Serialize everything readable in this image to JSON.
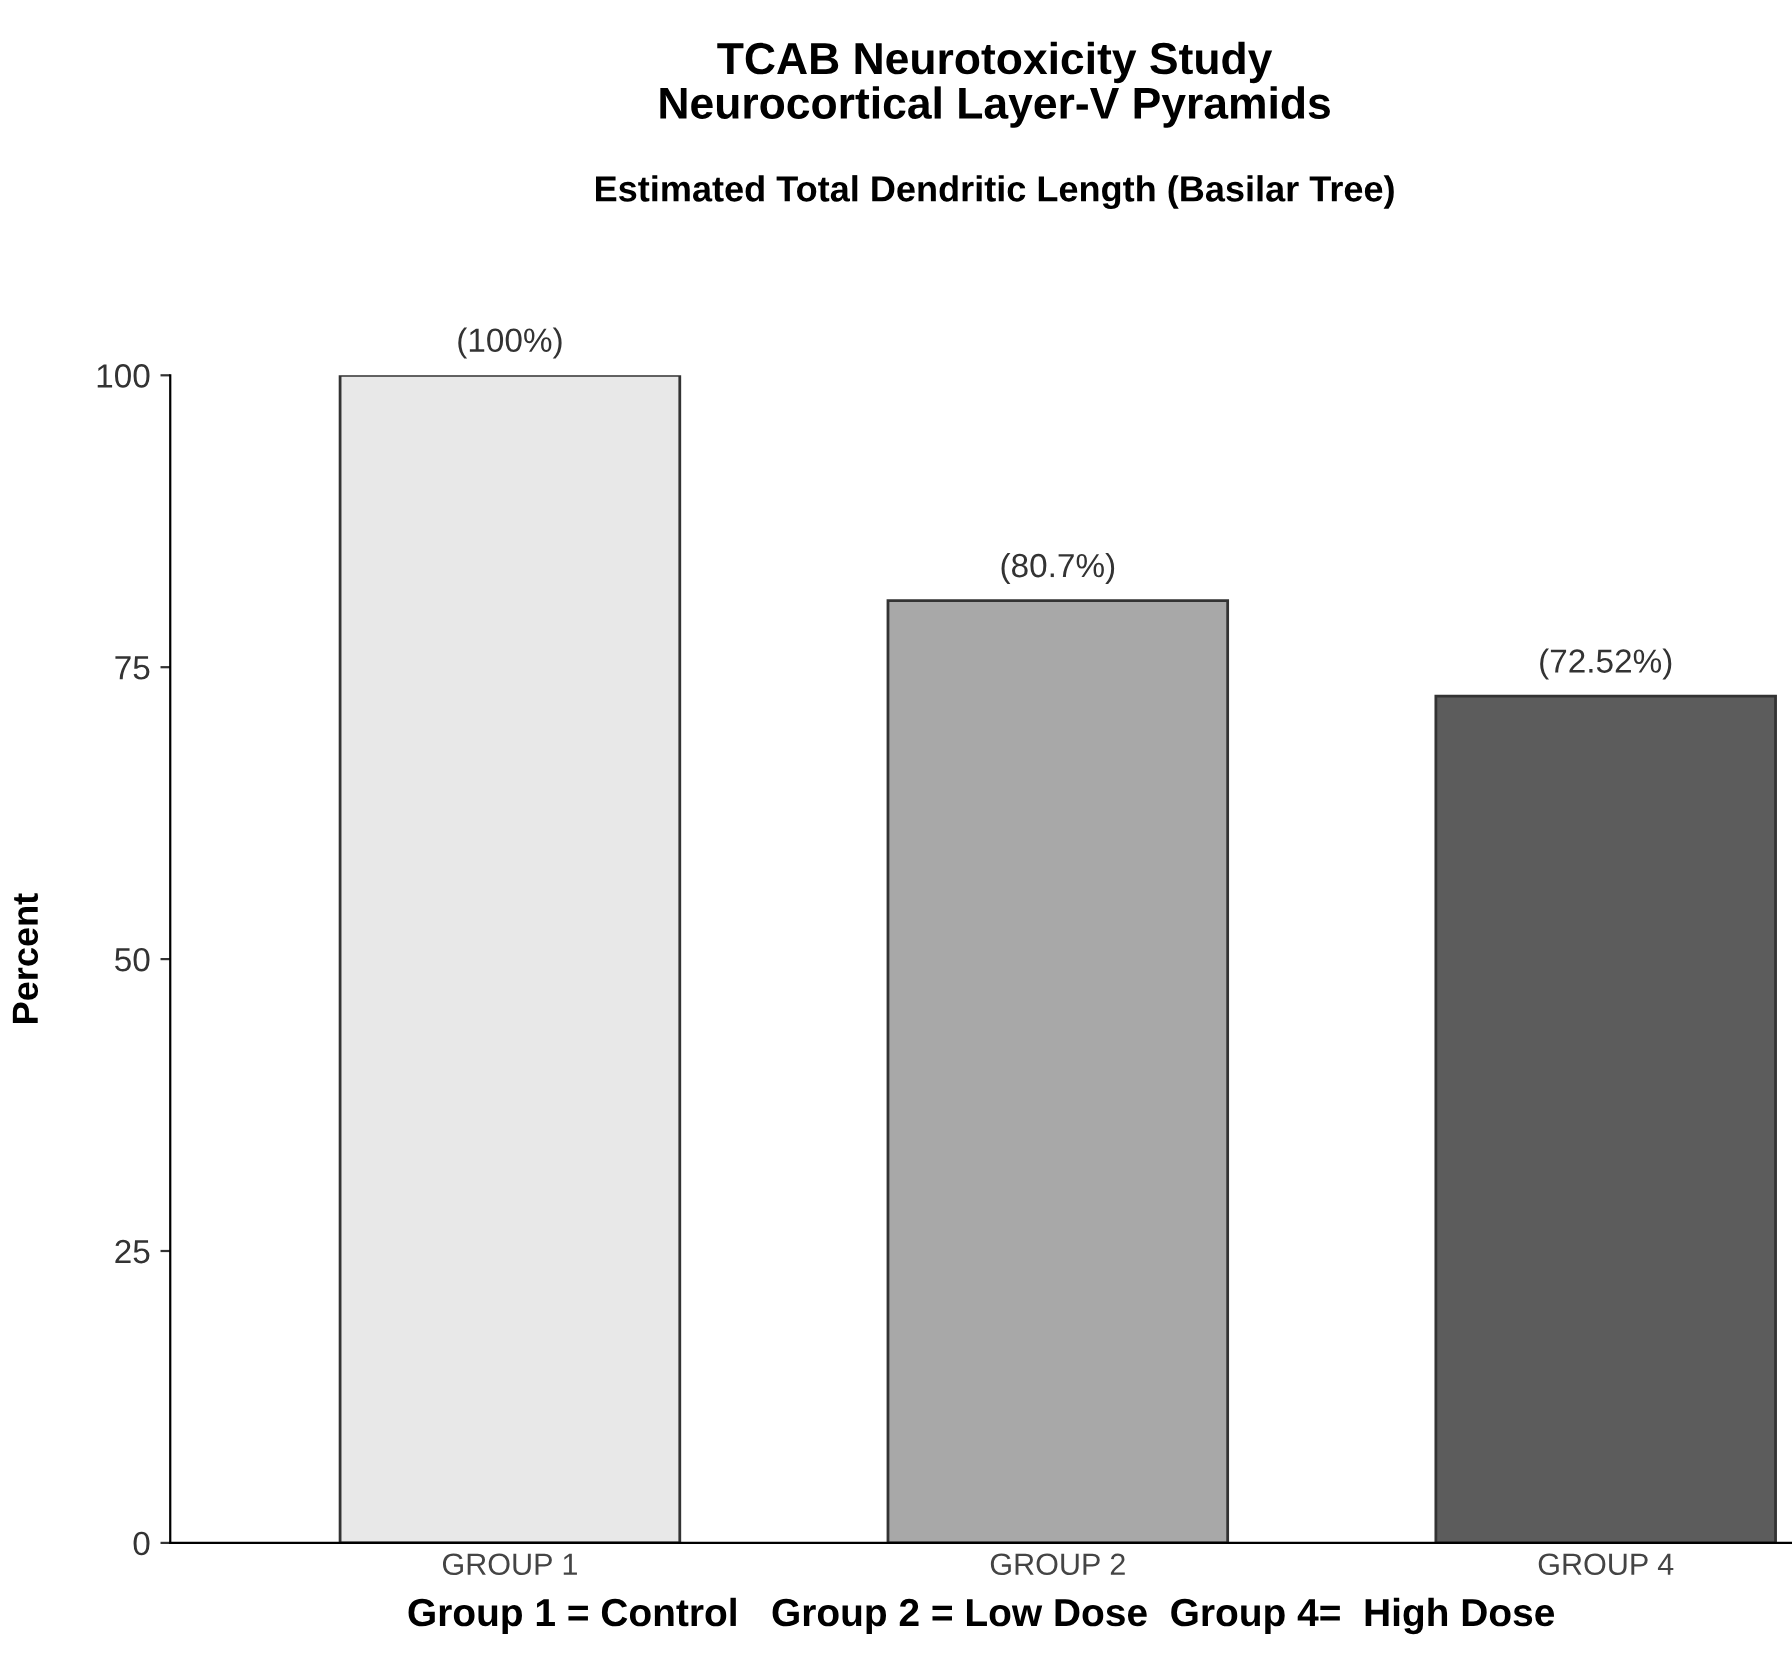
{
  "chart_data": {
    "type": "bar",
    "title": "TCAB Neurotoxicity Study\nNeurocortical Layer-V Pyramids",
    "subtitle": "Estimated Total Dendritic Length (Basilar Tree)",
    "categories": [
      "GROUP 1",
      "GROUP 2",
      "GROUP 4"
    ],
    "values": [
      100,
      80.7,
      72.52
    ],
    "value_labels": [
      "(100%)",
      "(80.7%)",
      "(72.52%)"
    ],
    "colors": [
      "#e8e8e8",
      "#a8a8a8",
      "#5c5c5c"
    ],
    "ylabel": "Percent",
    "xlabel": "Group 1 = Control   Group 2 = Low Dose  Group 4=  High Dose",
    "ylim": [
      0,
      100
    ],
    "yticks": [
      0,
      25,
      50,
      75,
      100
    ],
    "grid": false
  }
}
